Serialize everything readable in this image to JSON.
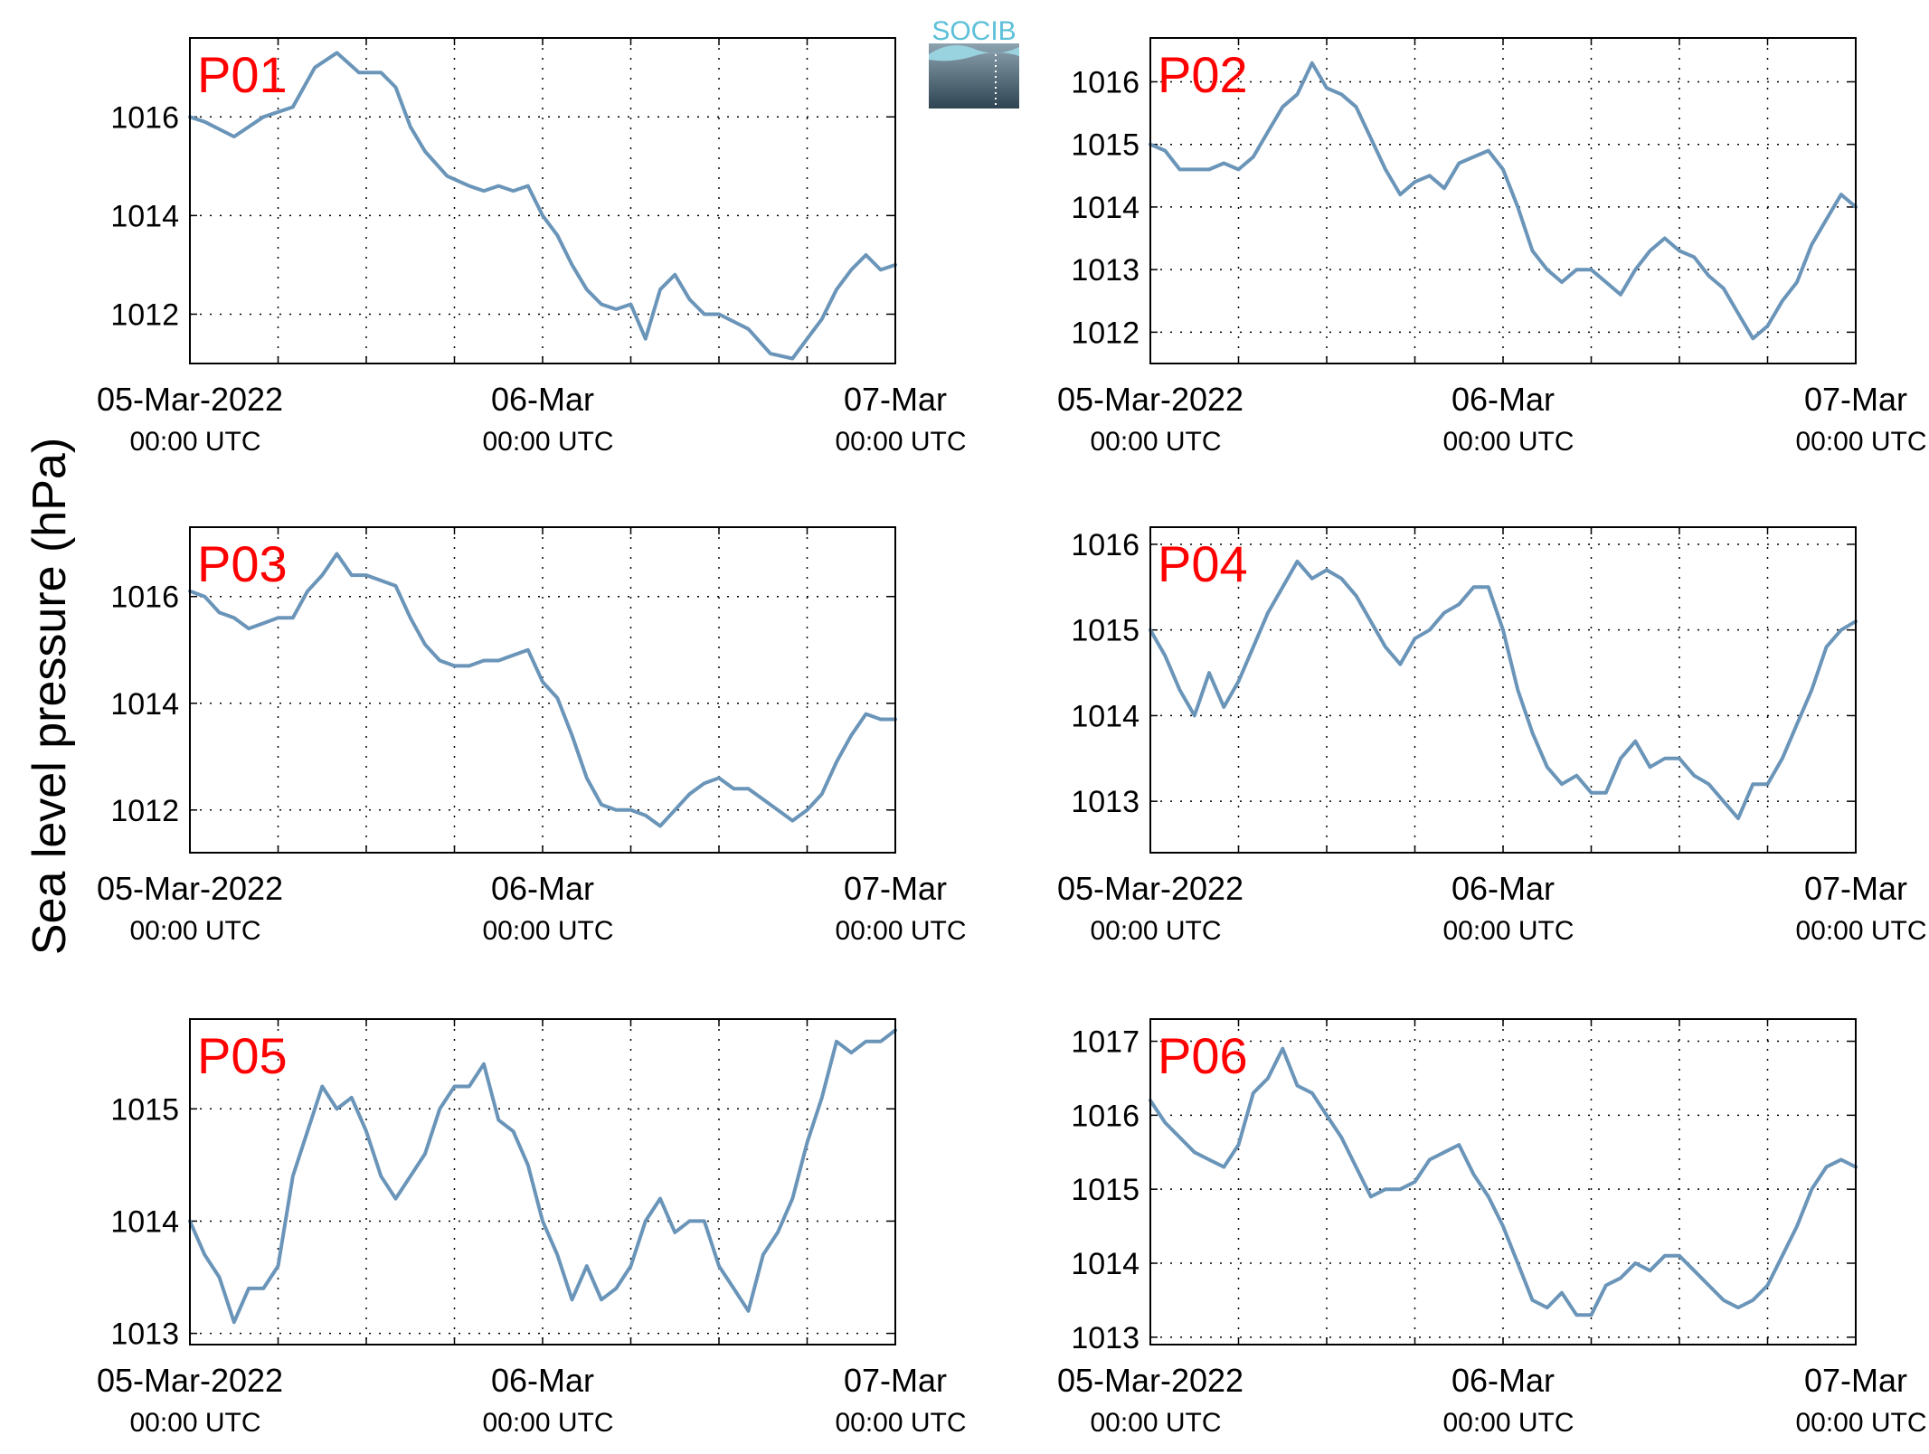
{
  "logo": {
    "text": "SOCIB"
  },
  "ylabel": "Sea level pressure (hPa)",
  "colors": {
    "line": "#6a95b9",
    "label": "#ff0000",
    "axis": "#000000",
    "grid": "#000000"
  },
  "x_tick_labels": [
    {
      "date": "05-Mar-2022",
      "time": "00:00 UTC"
    },
    {
      "date": "06-Mar",
      "time": "00:00 UTC"
    },
    {
      "date": "07-Mar",
      "time": "00:00 UTC"
    }
  ],
  "chart_data": [
    {
      "type": "line",
      "label": "P01",
      "x": [
        "2022-03-05T00:00",
        "2022-03-05T01:00",
        "2022-03-05T03:00",
        "2022-03-05T05:00",
        "2022-03-05T07:00",
        "2022-03-05T08:30",
        "2022-03-05T10:00",
        "2022-03-05T11:30",
        "2022-03-05T13:00",
        "2022-03-05T14:00",
        "2022-03-05T15:00",
        "2022-03-05T16:00",
        "2022-03-05T17:30",
        "2022-03-05T19:00",
        "2022-03-05T20:00",
        "2022-03-05T21:00",
        "2022-03-05T22:00",
        "2022-03-05T23:00",
        "2022-03-06T00:00",
        "2022-03-06T01:00",
        "2022-03-06T02:00",
        "2022-03-06T03:00",
        "2022-03-06T04:00",
        "2022-03-06T05:00",
        "2022-03-06T06:00",
        "2022-03-06T07:00",
        "2022-03-06T08:00",
        "2022-03-06T09:00",
        "2022-03-06T10:00",
        "2022-03-06T11:00",
        "2022-03-06T12:00",
        "2022-03-06T14:00",
        "2022-03-06T15:30",
        "2022-03-06T17:00",
        "2022-03-06T18:00",
        "2022-03-06T19:00",
        "2022-03-06T20:00",
        "2022-03-06T21:00",
        "2022-03-06T22:00",
        "2022-03-06T23:00",
        "2022-03-07T00:00"
      ],
      "values": [
        1016.0,
        1015.9,
        1015.6,
        1016.0,
        1016.2,
        1017.0,
        1017.3,
        1016.9,
        1016.9,
        1016.6,
        1015.8,
        1015.3,
        1014.8,
        1014.6,
        1014.5,
        1014.6,
        1014.5,
        1014.6,
        1014.0,
        1013.6,
        1013.0,
        1012.5,
        1012.2,
        1012.1,
        1012.2,
        1011.5,
        1012.5,
        1012.8,
        1012.3,
        1012.0,
        1012.0,
        1011.7,
        1011.2,
        1011.1,
        1011.5,
        1011.9,
        1012.5,
        1012.9,
        1013.2,
        1012.9,
        1013.0
      ],
      "ylim": [
        1011.0,
        1017.6
      ],
      "yticks": [
        1012,
        1014,
        1016
      ]
    },
    {
      "type": "line",
      "label": "P02",
      "x": [
        "2022-03-05T00:00",
        "2022-03-05T01:00",
        "2022-03-05T02:00",
        "2022-03-05T03:00",
        "2022-03-05T04:00",
        "2022-03-05T05:00",
        "2022-03-05T06:00",
        "2022-03-05T07:00",
        "2022-03-05T08:00",
        "2022-03-05T09:00",
        "2022-03-05T10:00",
        "2022-03-05T11:00",
        "2022-03-05T12:00",
        "2022-03-05T13:00",
        "2022-03-05T14:00",
        "2022-03-05T15:00",
        "2022-03-05T16:00",
        "2022-03-05T17:00",
        "2022-03-05T18:00",
        "2022-03-05T19:00",
        "2022-03-05T20:00",
        "2022-03-05T21:00",
        "2022-03-05T22:00",
        "2022-03-05T23:00",
        "2022-03-06T00:00",
        "2022-03-06T01:00",
        "2022-03-06T02:00",
        "2022-03-06T03:00",
        "2022-03-06T04:00",
        "2022-03-06T05:00",
        "2022-03-06T06:00",
        "2022-03-06T07:00",
        "2022-03-06T08:00",
        "2022-03-06T09:00",
        "2022-03-06T10:00",
        "2022-03-06T11:00",
        "2022-03-06T12:00",
        "2022-03-06T13:00",
        "2022-03-06T14:00",
        "2022-03-06T15:00",
        "2022-03-06T16:00",
        "2022-03-06T17:00",
        "2022-03-06T18:00",
        "2022-03-06T19:00",
        "2022-03-06T20:00",
        "2022-03-06T21:00",
        "2022-03-06T22:00",
        "2022-03-06T23:00",
        "2022-03-07T00:00"
      ],
      "values": [
        1015.0,
        1014.9,
        1014.6,
        1014.6,
        1014.6,
        1014.7,
        1014.6,
        1014.8,
        1015.2,
        1015.6,
        1015.8,
        1016.3,
        1015.9,
        1015.8,
        1015.6,
        1015.1,
        1014.6,
        1014.2,
        1014.4,
        1014.5,
        1014.3,
        1014.7,
        1014.8,
        1014.9,
        1014.6,
        1014.0,
        1013.3,
        1013.0,
        1012.8,
        1013.0,
        1013.0,
        1012.8,
        1012.6,
        1013.0,
        1013.3,
        1013.5,
        1013.3,
        1013.2,
        1012.9,
        1012.7,
        1012.3,
        1011.9,
        1012.1,
        1012.5,
        1012.8,
        1013.4,
        1013.8,
        1014.2,
        1014.0
      ],
      "ylim": [
        1011.5,
        1016.7
      ],
      "yticks": [
        1012,
        1013,
        1014,
        1015,
        1016
      ]
    },
    {
      "type": "line",
      "label": "P03",
      "x": [
        "2022-03-05T00:00",
        "2022-03-05T01:00",
        "2022-03-05T02:00",
        "2022-03-05T03:00",
        "2022-03-05T04:00",
        "2022-03-05T05:00",
        "2022-03-05T06:00",
        "2022-03-05T07:00",
        "2022-03-05T08:00",
        "2022-03-05T09:00",
        "2022-03-05T10:00",
        "2022-03-05T11:00",
        "2022-03-05T12:00",
        "2022-03-05T13:00",
        "2022-03-05T14:00",
        "2022-03-05T15:00",
        "2022-03-05T16:00",
        "2022-03-05T17:00",
        "2022-03-05T18:00",
        "2022-03-05T19:00",
        "2022-03-05T20:00",
        "2022-03-05T21:00",
        "2022-03-05T22:00",
        "2022-03-05T23:00",
        "2022-03-06T00:00",
        "2022-03-06T01:00",
        "2022-03-06T02:00",
        "2022-03-06T03:00",
        "2022-03-06T04:00",
        "2022-03-06T05:00",
        "2022-03-06T06:00",
        "2022-03-06T07:00",
        "2022-03-06T08:00",
        "2022-03-06T09:00",
        "2022-03-06T10:00",
        "2022-03-06T11:00",
        "2022-03-06T12:00",
        "2022-03-06T13:00",
        "2022-03-06T14:00",
        "2022-03-06T15:00",
        "2022-03-06T16:00",
        "2022-03-06T17:00",
        "2022-03-06T18:00",
        "2022-03-06T19:00",
        "2022-03-06T20:00",
        "2022-03-06T21:00",
        "2022-03-06T22:00",
        "2022-03-06T23:00",
        "2022-03-07T00:00"
      ],
      "values": [
        1016.1,
        1016.0,
        1015.7,
        1015.6,
        1015.4,
        1015.5,
        1015.6,
        1015.6,
        1016.1,
        1016.4,
        1016.8,
        1016.4,
        1016.4,
        1016.3,
        1016.2,
        1015.6,
        1015.1,
        1014.8,
        1014.7,
        1014.7,
        1014.8,
        1014.8,
        1014.9,
        1015.0,
        1014.4,
        1014.1,
        1013.4,
        1012.6,
        1012.1,
        1012.0,
        1012.0,
        1011.9,
        1011.7,
        1012.0,
        1012.3,
        1012.5,
        1012.6,
        1012.4,
        1012.4,
        1012.2,
        1012.0,
        1011.8,
        1012.0,
        1012.3,
        1012.9,
        1013.4,
        1013.8,
        1013.7,
        1013.7
      ],
      "ylim": [
        1011.2,
        1017.3
      ],
      "yticks": [
        1012,
        1014,
        1016
      ]
    },
    {
      "type": "line",
      "label": "P04",
      "x": [
        "2022-03-05T00:00",
        "2022-03-05T01:00",
        "2022-03-05T02:00",
        "2022-03-05T03:00",
        "2022-03-05T04:00",
        "2022-03-05T05:00",
        "2022-03-05T06:00",
        "2022-03-05T07:00",
        "2022-03-05T08:00",
        "2022-03-05T09:00",
        "2022-03-05T10:00",
        "2022-03-05T11:00",
        "2022-03-05T12:00",
        "2022-03-05T13:00",
        "2022-03-05T14:00",
        "2022-03-05T15:00",
        "2022-03-05T16:00",
        "2022-03-05T17:00",
        "2022-03-05T18:00",
        "2022-03-05T19:00",
        "2022-03-05T20:00",
        "2022-03-05T21:00",
        "2022-03-05T22:00",
        "2022-03-05T23:00",
        "2022-03-06T00:00",
        "2022-03-06T01:00",
        "2022-03-06T02:00",
        "2022-03-06T03:00",
        "2022-03-06T04:00",
        "2022-03-06T05:00",
        "2022-03-06T06:00",
        "2022-03-06T07:00",
        "2022-03-06T08:00",
        "2022-03-06T09:00",
        "2022-03-06T10:00",
        "2022-03-06T11:00",
        "2022-03-06T12:00",
        "2022-03-06T13:00",
        "2022-03-06T14:00",
        "2022-03-06T15:00",
        "2022-03-06T16:00",
        "2022-03-06T17:00",
        "2022-03-06T18:00",
        "2022-03-06T19:00",
        "2022-03-06T20:00",
        "2022-03-06T21:00",
        "2022-03-06T22:00",
        "2022-03-06T23:00",
        "2022-03-07T00:00"
      ],
      "values": [
        1015.0,
        1014.7,
        1014.3,
        1014.0,
        1014.5,
        1014.1,
        1014.4,
        1014.8,
        1015.2,
        1015.5,
        1015.8,
        1015.6,
        1015.7,
        1015.6,
        1015.4,
        1015.1,
        1014.8,
        1014.6,
        1014.9,
        1015.0,
        1015.2,
        1015.3,
        1015.5,
        1015.5,
        1015.0,
        1014.3,
        1013.8,
        1013.4,
        1013.2,
        1013.3,
        1013.1,
        1013.1,
        1013.5,
        1013.7,
        1013.4,
        1013.5,
        1013.5,
        1013.3,
        1013.2,
        1013.0,
        1012.8,
        1013.2,
        1013.2,
        1013.5,
        1013.9,
        1014.3,
        1014.8,
        1015.0,
        1015.1
      ],
      "ylim": [
        1012.4,
        1016.2
      ],
      "yticks": [
        1013,
        1014,
        1015,
        1016
      ]
    },
    {
      "type": "line",
      "label": "P05",
      "x": [
        "2022-03-05T00:00",
        "2022-03-05T01:00",
        "2022-03-05T02:00",
        "2022-03-05T03:00",
        "2022-03-05T04:00",
        "2022-03-05T05:00",
        "2022-03-05T06:00",
        "2022-03-05T07:00",
        "2022-03-05T08:00",
        "2022-03-05T09:00",
        "2022-03-05T10:00",
        "2022-03-05T11:00",
        "2022-03-05T12:00",
        "2022-03-05T13:00",
        "2022-03-05T14:00",
        "2022-03-05T15:00",
        "2022-03-05T16:00",
        "2022-03-05T17:00",
        "2022-03-05T18:00",
        "2022-03-05T19:00",
        "2022-03-05T20:00",
        "2022-03-05T21:00",
        "2022-03-05T22:00",
        "2022-03-05T23:00",
        "2022-03-06T00:00",
        "2022-03-06T01:00",
        "2022-03-06T02:00",
        "2022-03-06T03:00",
        "2022-03-06T04:00",
        "2022-03-06T05:00",
        "2022-03-06T06:00",
        "2022-03-06T07:00",
        "2022-03-06T08:00",
        "2022-03-06T09:00",
        "2022-03-06T10:00",
        "2022-03-06T11:00",
        "2022-03-06T12:00",
        "2022-03-06T13:00",
        "2022-03-06T14:00",
        "2022-03-06T15:00",
        "2022-03-06T16:00",
        "2022-03-06T17:00",
        "2022-03-06T18:00",
        "2022-03-06T19:00",
        "2022-03-06T20:00",
        "2022-03-06T21:00",
        "2022-03-06T22:00",
        "2022-03-06T23:00",
        "2022-03-07T00:00"
      ],
      "values": [
        1014.0,
        1013.7,
        1013.5,
        1013.1,
        1013.4,
        1013.4,
        1013.6,
        1014.4,
        1014.8,
        1015.2,
        1015.0,
        1015.1,
        1014.8,
        1014.4,
        1014.2,
        1014.4,
        1014.6,
        1015.0,
        1015.2,
        1015.2,
        1015.4,
        1014.9,
        1014.8,
        1014.5,
        1014.0,
        1013.7,
        1013.3,
        1013.6,
        1013.3,
        1013.4,
        1013.6,
        1014.0,
        1014.2,
        1013.9,
        1014.0,
        1014.0,
        1013.6,
        1013.4,
        1013.2,
        1013.7,
        1013.9,
        1014.2,
        1014.7,
        1015.1,
        1015.6,
        1015.5,
        1015.6,
        1015.6,
        1015.7
      ],
      "ylim": [
        1012.9,
        1015.8
      ],
      "yticks": [
        1013,
        1014,
        1015
      ]
    },
    {
      "type": "line",
      "label": "P06",
      "x": [
        "2022-03-05T00:00",
        "2022-03-05T01:00",
        "2022-03-05T02:00",
        "2022-03-05T03:00",
        "2022-03-05T04:00",
        "2022-03-05T05:00",
        "2022-03-05T06:00",
        "2022-03-05T07:00",
        "2022-03-05T08:00",
        "2022-03-05T09:00",
        "2022-03-05T10:00",
        "2022-03-05T11:00",
        "2022-03-05T12:00",
        "2022-03-05T13:00",
        "2022-03-05T14:00",
        "2022-03-05T15:00",
        "2022-03-05T16:00",
        "2022-03-05T17:00",
        "2022-03-05T18:00",
        "2022-03-05T19:00",
        "2022-03-05T20:00",
        "2022-03-05T21:00",
        "2022-03-05T22:00",
        "2022-03-05T23:00",
        "2022-03-06T00:00",
        "2022-03-06T01:00",
        "2022-03-06T02:00",
        "2022-03-06T03:00",
        "2022-03-06T04:00",
        "2022-03-06T05:00",
        "2022-03-06T06:00",
        "2022-03-06T07:00",
        "2022-03-06T08:00",
        "2022-03-06T09:00",
        "2022-03-06T10:00",
        "2022-03-06T11:00",
        "2022-03-06T12:00",
        "2022-03-06T13:00",
        "2022-03-06T14:00",
        "2022-03-06T15:00",
        "2022-03-06T16:00",
        "2022-03-06T17:00",
        "2022-03-06T18:00",
        "2022-03-06T19:00",
        "2022-03-06T20:00",
        "2022-03-06T21:00",
        "2022-03-06T22:00",
        "2022-03-06T23:00",
        "2022-03-07T00:00"
      ],
      "values": [
        1016.2,
        1015.9,
        1015.7,
        1015.5,
        1015.4,
        1015.3,
        1015.6,
        1016.3,
        1016.5,
        1016.9,
        1016.4,
        1016.3,
        1016.0,
        1015.7,
        1015.3,
        1014.9,
        1015.0,
        1015.0,
        1015.1,
        1015.4,
        1015.5,
        1015.6,
        1015.2,
        1014.9,
        1014.5,
        1014.0,
        1013.5,
        1013.4,
        1013.6,
        1013.3,
        1013.3,
        1013.7,
        1013.8,
        1014.0,
        1013.9,
        1014.1,
        1014.1,
        1013.9,
        1013.7,
        1013.5,
        1013.4,
        1013.5,
        1013.7,
        1014.1,
        1014.5,
        1015.0,
        1015.3,
        1015.4,
        1015.3
      ],
      "ylim": [
        1012.9,
        1017.3
      ],
      "yticks": [
        1013,
        1014,
        1015,
        1016,
        1017
      ]
    }
  ]
}
